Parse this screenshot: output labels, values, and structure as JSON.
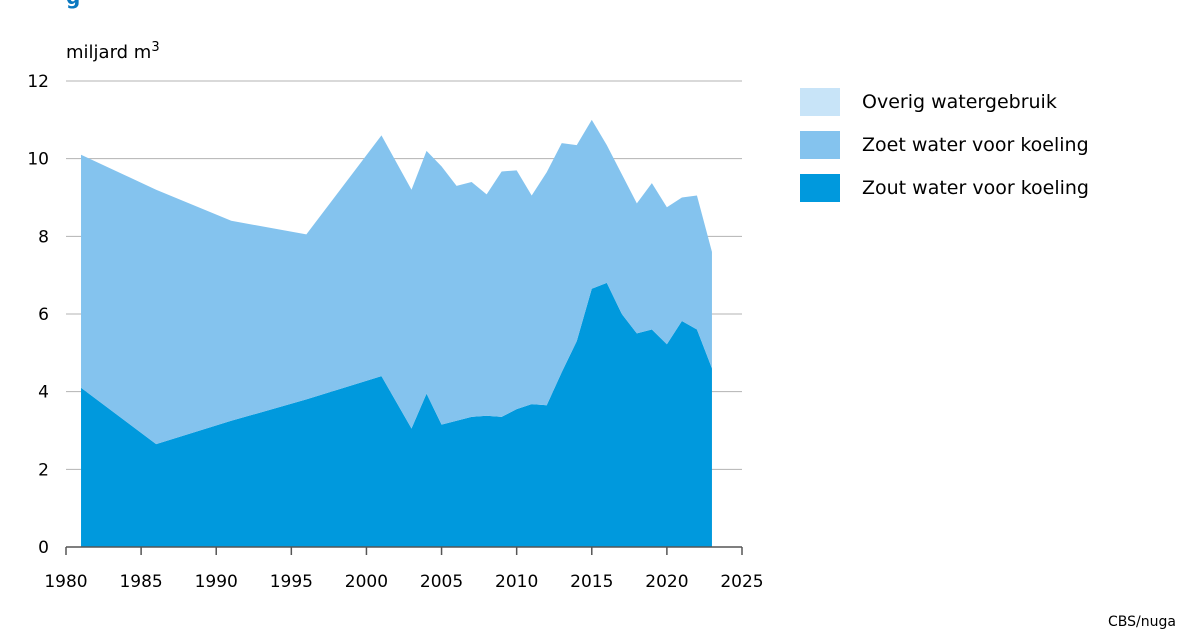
{
  "page": {
    "title_fragment": "g",
    "source": "CBS/nuga"
  },
  "chart_data": {
    "type": "area",
    "stacked": true,
    "title": "",
    "xlabel": "",
    "ylabel": "miljard m³",
    "ylabel_base": "miljard m",
    "ylabel_superscript": "3",
    "xlim": [
      1980,
      2025
    ],
    "ylim": [
      0,
      12
    ],
    "xticks": [
      1980,
      1985,
      1990,
      1995,
      2000,
      2005,
      2010,
      2015,
      2020,
      2025
    ],
    "yticks": [
      0,
      2,
      4,
      6,
      8,
      10,
      12
    ],
    "grid": {
      "horizontal": true,
      "vertical": false
    },
    "legend_position": "right",
    "x": [
      1981,
      1986,
      1991,
      1996,
      2001,
      2003,
      2004,
      2005,
      2006,
      2007,
      2008,
      2009,
      2010,
      2011,
      2012,
      2013,
      2014,
      2015,
      2016,
      2017,
      2018,
      2019,
      2020,
      2021,
      2022,
      2023
    ],
    "series": [
      {
        "name": "Zout water voor koeling",
        "color": "#0099dd",
        "values": [
          4.1,
          2.65,
          3.25,
          3.8,
          4.4,
          3.05,
          3.95,
          3.15,
          3.25,
          3.35,
          3.38,
          3.35,
          3.55,
          3.68,
          3.65,
          4.5,
          5.3,
          6.65,
          6.8,
          6.0,
          5.5,
          5.6,
          5.22,
          5.82,
          5.6,
          4.6
        ]
      },
      {
        "name": "Zoet water voor koeling",
        "color": "#84c3ee",
        "values": [
          6.0,
          6.55,
          5.15,
          4.25,
          6.2,
          6.15,
          6.25,
          6.65,
          6.05,
          6.05,
          5.7,
          6.32,
          6.15,
          5.37,
          6.0,
          5.9,
          5.05,
          4.35,
          3.55,
          3.6,
          3.35,
          3.77,
          3.53,
          3.18,
          3.45,
          3.0
        ]
      },
      {
        "name": "Overig watergebruik",
        "color": "#c8e4f8",
        "values": [
          0,
          0,
          0,
          0,
          0,
          0,
          0,
          0,
          0,
          0,
          0,
          0,
          0,
          0,
          0,
          0,
          0,
          0,
          0,
          0,
          0,
          0,
          0,
          0,
          0,
          0
        ]
      }
    ],
    "legend_order": [
      "Overig watergebruik",
      "Zoet water voor koeling",
      "Zout water voor koeling"
    ],
    "axis_color": "#555555",
    "grid_color": "#b3b3b3"
  }
}
